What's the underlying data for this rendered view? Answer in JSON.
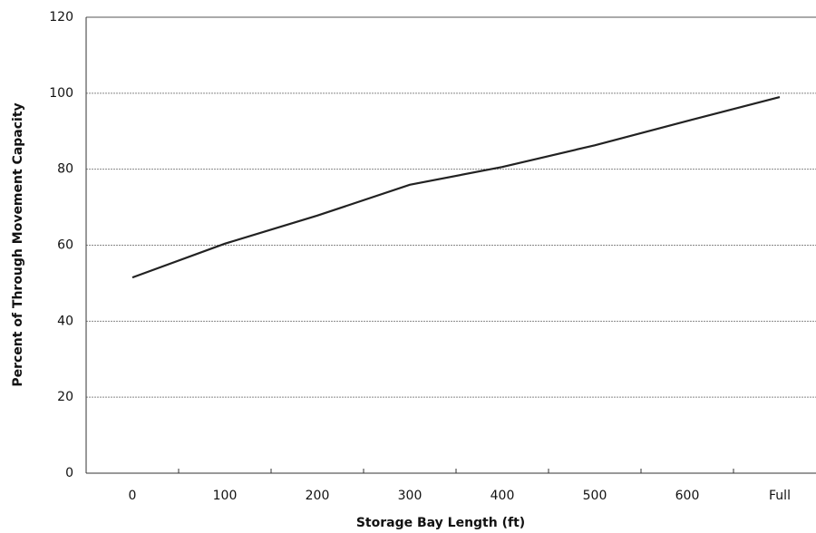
{
  "chart_data": {
    "type": "line",
    "x_label": "Storage Bay Length (ft)",
    "y_label": "Percent of Through Movement Capacity",
    "categories": [
      "0",
      "100",
      "200",
      "300",
      "400",
      "500",
      "600",
      "Full"
    ],
    "values": [
      51.5,
      60.4,
      67.8,
      75.9,
      80.6,
      86.3,
      92.7,
      99
    ],
    "color": "#222222",
    "ylim": [
      0,
      120
    ],
    "yticks": [
      0,
      20,
      40,
      60,
      80,
      100,
      120
    ],
    "grid": true
  }
}
